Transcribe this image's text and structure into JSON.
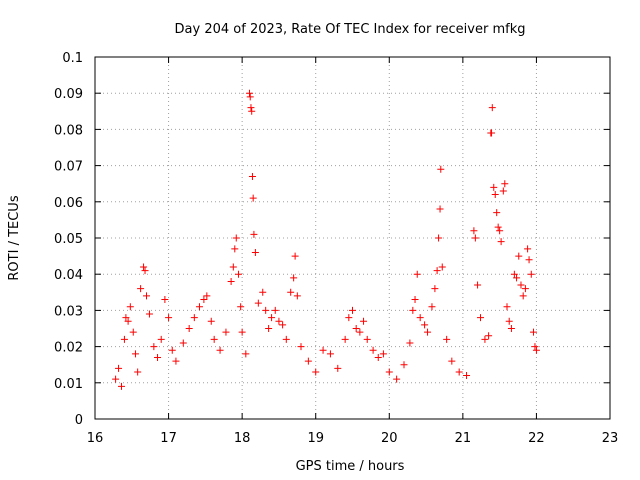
{
  "chart_data": {
    "type": "scatter",
    "title": "Day 204 of 2023, Rate Of TEC Index for receiver mfkg",
    "xlabel": "GPS time / hours",
    "ylabel": "ROTI / TECUs",
    "xlim": [
      16,
      23
    ],
    "ylim": [
      0,
      0.1
    ],
    "x_ticks": [
      "16",
      "17",
      "18",
      "19",
      "20",
      "21",
      "22",
      "23"
    ],
    "y_ticks": [
      "0",
      "0.01",
      "0.02",
      "0.03",
      "0.04",
      "0.05",
      "0.06",
      "0.07",
      "0.08",
      "0.09",
      "0.1"
    ],
    "grid": true,
    "legend": "none",
    "marker": "+",
    "color": "#ff0000",
    "series": [
      {
        "points": [
          [
            16.28,
            0.011
          ],
          [
            16.32,
            0.014
          ],
          [
            16.36,
            0.009
          ],
          [
            16.4,
            0.022
          ],
          [
            16.42,
            0.028
          ],
          [
            16.45,
            0.027
          ],
          [
            16.48,
            0.031
          ],
          [
            16.52,
            0.024
          ],
          [
            16.55,
            0.018
          ],
          [
            16.58,
            0.013
          ],
          [
            16.62,
            0.036
          ],
          [
            16.66,
            0.042
          ],
          [
            16.68,
            0.041
          ],
          [
            16.7,
            0.034
          ],
          [
            16.74,
            0.029
          ],
          [
            16.8,
            0.02
          ],
          [
            16.85,
            0.017
          ],
          [
            16.9,
            0.022
          ],
          [
            16.95,
            0.033
          ],
          [
            17.0,
            0.028
          ],
          [
            17.05,
            0.019
          ],
          [
            17.1,
            0.016
          ],
          [
            17.2,
            0.021
          ],
          [
            17.28,
            0.025
          ],
          [
            17.35,
            0.028
          ],
          [
            17.42,
            0.031
          ],
          [
            17.48,
            0.033
          ],
          [
            17.52,
            0.034
          ],
          [
            17.58,
            0.027
          ],
          [
            17.62,
            0.022
          ],
          [
            17.7,
            0.019
          ],
          [
            17.78,
            0.024
          ],
          [
            17.85,
            0.038
          ],
          [
            17.88,
            0.042
          ],
          [
            17.9,
            0.047
          ],
          [
            17.92,
            0.05
          ],
          [
            17.95,
            0.04
          ],
          [
            17.98,
            0.031
          ],
          [
            18.0,
            0.024
          ],
          [
            18.05,
            0.018
          ],
          [
            18.1,
            0.09
          ],
          [
            18.11,
            0.089
          ],
          [
            18.12,
            0.086
          ],
          [
            18.13,
            0.085
          ],
          [
            18.14,
            0.067
          ],
          [
            18.15,
            0.061
          ],
          [
            18.16,
            0.051
          ],
          [
            18.18,
            0.046
          ],
          [
            18.22,
            0.032
          ],
          [
            18.28,
            0.035
          ],
          [
            18.32,
            0.03
          ],
          [
            18.36,
            0.025
          ],
          [
            18.4,
            0.028
          ],
          [
            18.45,
            0.03
          ],
          [
            18.5,
            0.027
          ],
          [
            18.55,
            0.026
          ],
          [
            18.6,
            0.022
          ],
          [
            18.66,
            0.035
          ],
          [
            18.7,
            0.039
          ],
          [
            18.72,
            0.045
          ],
          [
            18.75,
            0.034
          ],
          [
            18.8,
            0.02
          ],
          [
            18.9,
            0.016
          ],
          [
            19.0,
            0.013
          ],
          [
            19.1,
            0.019
          ],
          [
            19.2,
            0.018
          ],
          [
            19.3,
            0.014
          ],
          [
            19.4,
            0.022
          ],
          [
            19.45,
            0.028
          ],
          [
            19.5,
            0.03
          ],
          [
            19.55,
            0.025
          ],
          [
            19.6,
            0.024
          ],
          [
            19.65,
            0.027
          ],
          [
            19.7,
            0.022
          ],
          [
            19.78,
            0.019
          ],
          [
            19.85,
            0.017
          ],
          [
            19.92,
            0.018
          ],
          [
            20.0,
            0.013
          ],
          [
            20.1,
            0.011
          ],
          [
            20.2,
            0.015
          ],
          [
            20.28,
            0.021
          ],
          [
            20.32,
            0.03
          ],
          [
            20.35,
            0.033
          ],
          [
            20.38,
            0.04
          ],
          [
            20.42,
            0.028
          ],
          [
            20.48,
            0.026
          ],
          [
            20.52,
            0.024
          ],
          [
            20.58,
            0.031
          ],
          [
            20.62,
            0.036
          ],
          [
            20.65,
            0.041
          ],
          [
            20.67,
            0.05
          ],
          [
            20.69,
            0.058
          ],
          [
            20.7,
            0.069
          ],
          [
            20.72,
            0.042
          ],
          [
            20.78,
            0.022
          ],
          [
            20.85,
            0.016
          ],
          [
            20.95,
            0.013
          ],
          [
            21.05,
            0.012
          ],
          [
            21.15,
            0.052
          ],
          [
            21.17,
            0.05
          ],
          [
            21.2,
            0.037
          ],
          [
            21.24,
            0.028
          ],
          [
            21.3,
            0.022
          ],
          [
            21.35,
            0.023
          ],
          [
            21.38,
            0.079
          ],
          [
            21.39,
            0.079
          ],
          [
            21.4,
            0.086
          ],
          [
            21.42,
            0.064
          ],
          [
            21.44,
            0.062
          ],
          [
            21.46,
            0.057
          ],
          [
            21.48,
            0.053
          ],
          [
            21.5,
            0.052
          ],
          [
            21.52,
            0.049
          ],
          [
            21.55,
            0.063
          ],
          [
            21.57,
            0.065
          ],
          [
            21.6,
            0.031
          ],
          [
            21.63,
            0.027
          ],
          [
            21.66,
            0.025
          ],
          [
            21.7,
            0.04
          ],
          [
            21.73,
            0.039
          ],
          [
            21.76,
            0.045
          ],
          [
            21.79,
            0.037
          ],
          [
            21.82,
            0.034
          ],
          [
            21.85,
            0.036
          ],
          [
            21.88,
            0.047
          ],
          [
            21.9,
            0.044
          ],
          [
            21.93,
            0.04
          ],
          [
            21.96,
            0.024
          ],
          [
            21.98,
            0.02
          ],
          [
            22.0,
            0.019
          ]
        ]
      }
    ]
  }
}
